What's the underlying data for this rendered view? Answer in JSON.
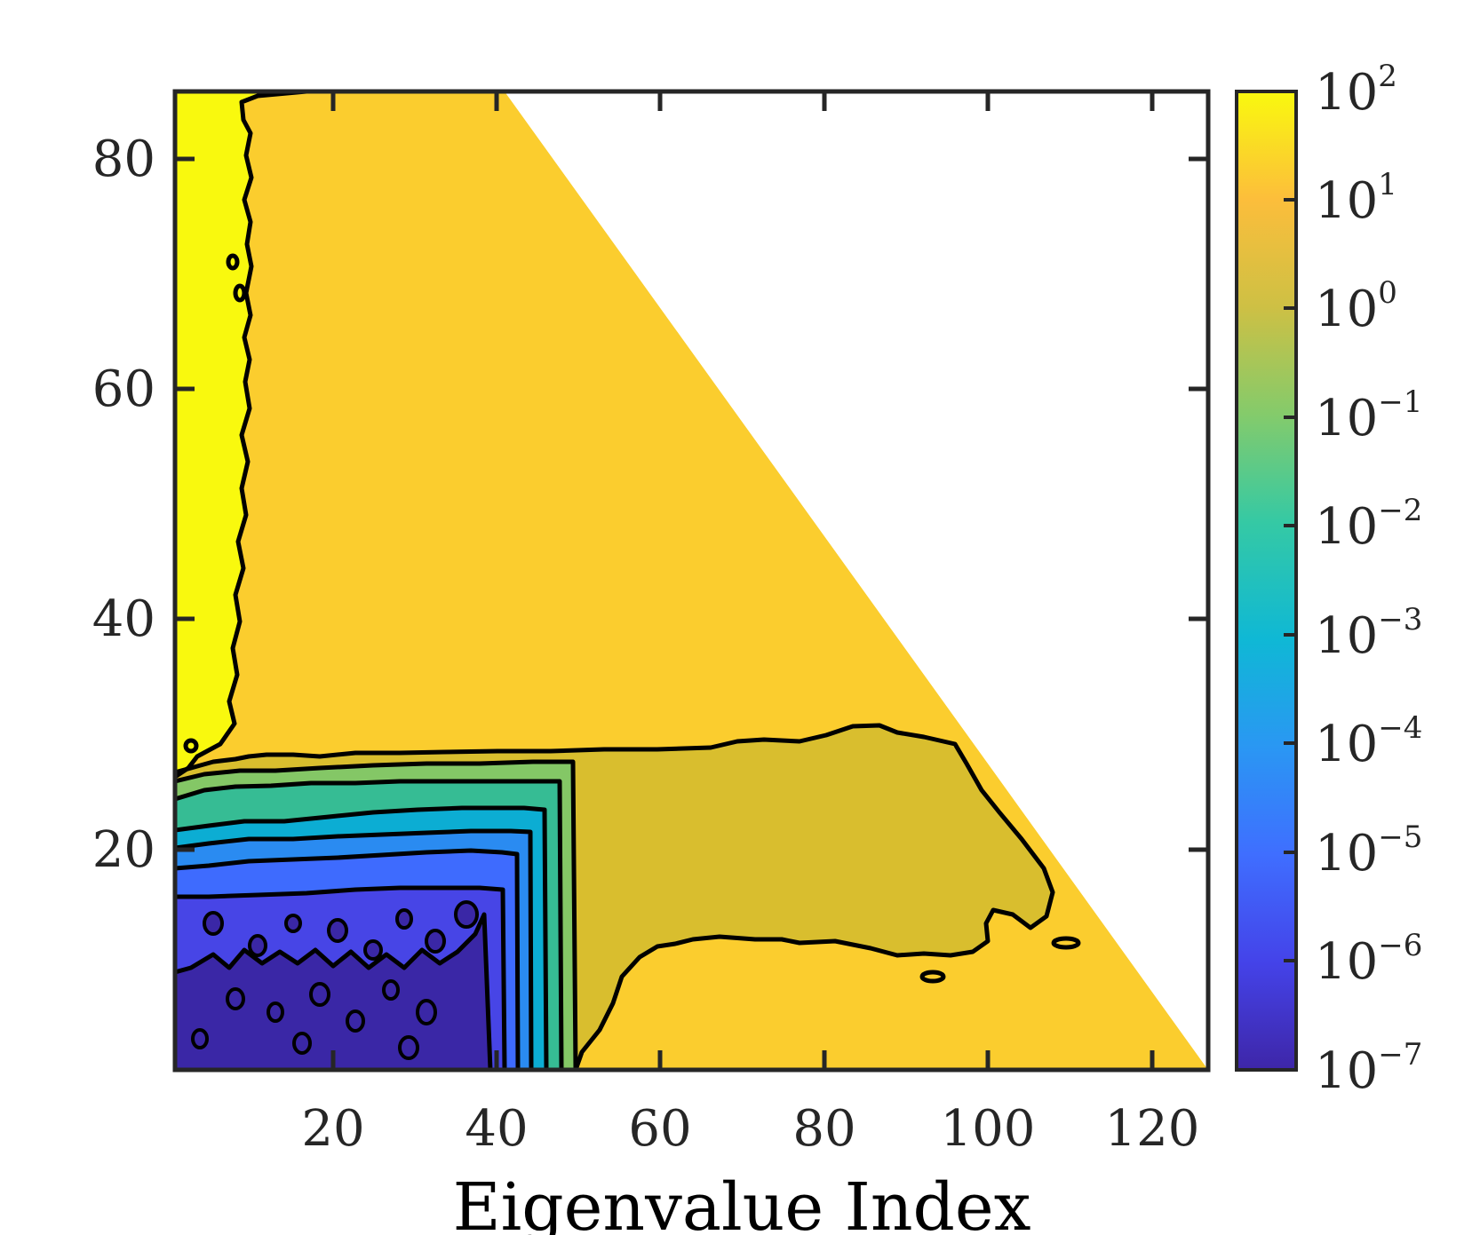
{
  "chart_data": {
    "type": "heatmap",
    "subtype": "filled-contour",
    "xlabel": "Eigenvalue Index",
    "ylabel": "",
    "title": "",
    "xlim": [
      1,
      126
    ],
    "ylim": [
      1,
      86
    ],
    "xticks": [
      20,
      40,
      60,
      80,
      100,
      120
    ],
    "yticks": [
      20,
      40,
      60,
      80
    ],
    "xtick_labels": [
      "20",
      "40",
      "60",
      "80",
      "100",
      "120"
    ],
    "ytick_labels": [
      "20",
      "40",
      "60",
      "80"
    ],
    "grid": false,
    "valid_region": "triangle: x <= 126 - 85*(y-1)/85 (upper-right triangle is empty)",
    "colorbar": {
      "scale": "log",
      "range": [
        1e-07,
        100
      ],
      "tick_base": "10",
      "tick_exponents": [
        "2",
        "1",
        "0",
        "−1",
        "−2",
        "−3",
        "−4",
        "−5",
        "−6",
        "−7"
      ],
      "colormap": "parula",
      "colors": [
        "#3E26A8",
        "#4443E9",
        "#3F6EFF",
        "#2A97F3",
        "#0FB8D5",
        "#35C9A4",
        "#84CB6B",
        "#CEC044",
        "#FCBE3B",
        "#F9F90E"
      ]
    },
    "levels": [
      {
        "band": "1e2",
        "color": "#F9F90E",
        "region": "left strip x<10, y>27"
      },
      {
        "band": "1e1",
        "color": "#FBCD2E",
        "region": "bulk of triangle above y~28 and lower-right"
      },
      {
        "band": "1e0",
        "color": "#D9BE2E",
        "region": "plateau x 50–110, y 10–30"
      },
      {
        "band": "1e-1",
        "color": "#84C766",
        "region": "band around x~48, y<26"
      },
      {
        "band": "1e-2",
        "color": "#36BC94",
        "region": "y 19–24"
      },
      {
        "band": "1e-3",
        "color": "#0CADD3",
        "region": "y 16–20"
      },
      {
        "band": "1e-4",
        "color": "#2A8BF1",
        "region": "y 15–18"
      },
      {
        "band": "1e-5",
        "color": "#3E6BFE",
        "region": "y 13–16"
      },
      {
        "band": "1e-6",
        "color": "#4745E6",
        "region": "y 10–14"
      },
      {
        "band": "1e-7",
        "color": "#3A27A6",
        "region": "bottom-left noisy floor x<42, y<12"
      }
    ]
  }
}
